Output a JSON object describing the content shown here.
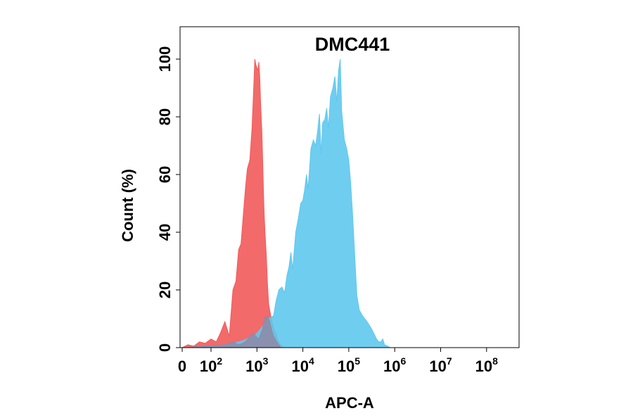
{
  "chart_data": {
    "type": "area",
    "title": "DMC441",
    "xlabel": "APC-A",
    "ylabel": "Count  (%)",
    "x_scale": "biexponential",
    "xlim": [
      0,
      100000000
    ],
    "ylim": [
      0,
      110
    ],
    "x_ticks": [
      {
        "value": 0,
        "base": "0",
        "exp": ""
      },
      {
        "value": 100,
        "base": "10",
        "exp": "2"
      },
      {
        "value": 1000,
        "base": "10",
        "exp": "3"
      },
      {
        "value": 10000,
        "base": "10",
        "exp": "4"
      },
      {
        "value": 100000,
        "base": "10",
        "exp": "5"
      },
      {
        "value": 1000000,
        "base": "10",
        "exp": "6"
      },
      {
        "value": 10000000,
        "base": "10",
        "exp": "7"
      },
      {
        "value": 100000000,
        "base": "10",
        "exp": "8"
      }
    ],
    "y_ticks": [
      "0",
      "20",
      "40",
      "60",
      "80",
      "100"
    ],
    "grid": false,
    "legend": "none",
    "series": [
      {
        "color": "#f25a5a",
        "x": [
          0,
          20,
          40,
          60,
          80,
          100,
          130,
          160,
          200,
          250,
          300,
          350,
          400,
          450,
          500,
          560,
          620,
          700,
          780,
          850,
          900,
          950,
          1000,
          1050,
          1100,
          1150,
          1200,
          1280,
          1350,
          1400,
          1450,
          1500,
          1600,
          1700,
          1800,
          2000,
          2200,
          2400,
          2600,
          2800,
          3000,
          3300,
          3600,
          4000
        ],
        "values": [
          0,
          1,
          0.5,
          2,
          1.5,
          3,
          2,
          5,
          9,
          4,
          20,
          23,
          34,
          36,
          45,
          55,
          62,
          65,
          76,
          90,
          100,
          98,
          97,
          96,
          99,
          94,
          85,
          75,
          62,
          52,
          45,
          40,
          32,
          22,
          15,
          11,
          8,
          6,
          5,
          3,
          2,
          1,
          0.5,
          0
        ]
      },
      {
        "color": "#5fc8ee",
        "x": [
          0,
          100,
          200,
          300,
          400,
          500,
          600,
          700,
          800,
          900,
          1000,
          1200,
          1400,
          1600,
          1800,
          2000,
          2300,
          2600,
          3000,
          3500,
          4000,
          4500,
          5000,
          5500,
          6000,
          7000,
          8000,
          9000,
          10000,
          11000,
          12000,
          13000,
          14000,
          15000,
          17000,
          19000,
          21000,
          23000,
          25000,
          27000,
          30000,
          33000,
          36000,
          40000,
          45000,
          50000,
          55000,
          60000,
          65000,
          70000,
          75000,
          80000,
          90000,
          100000,
          110000,
          120000,
          130000,
          140000,
          150000,
          170000,
          200000,
          250000,
          300000,
          350000,
          400000,
          450000,
          500000,
          550000,
          600000,
          700000,
          800000,
          900000,
          1000000
        ],
        "values": [
          0,
          0.5,
          1,
          1.5,
          2,
          2.5,
          3,
          3.5,
          4,
          4.5,
          5,
          6.5,
          8,
          9,
          10,
          10.5,
          11,
          16,
          20,
          21,
          19,
          25,
          28,
          33,
          27,
          40,
          45,
          50,
          51,
          55,
          60,
          55,
          62,
          69,
          72,
          70,
          75,
          81,
          67,
          78,
          79,
          83,
          76,
          87,
          90,
          94,
          85,
          96,
          100,
          82,
          77,
          72,
          69,
          65,
          57,
          47,
          37,
          27,
          18,
          13,
          11,
          9,
          7,
          5,
          3,
          2,
          2,
          3,
          1,
          0.5,
          0,
          0,
          0
        ]
      },
      {
        "color": "#8e8aa6",
        "x": [
          0,
          200,
          300,
          400,
          500,
          600,
          700,
          800,
          900,
          1000,
          1100,
          1300,
          1500,
          1700,
          1900,
          2100,
          2300,
          2500,
          2700,
          3000,
          3300
        ],
        "values": [
          0,
          1,
          2,
          1,
          1.5,
          2.5,
          4,
          5,
          4.5,
          3.5,
          3,
          6,
          10.5,
          11,
          9,
          6,
          4,
          3,
          2,
          1,
          0
        ]
      }
    ]
  }
}
